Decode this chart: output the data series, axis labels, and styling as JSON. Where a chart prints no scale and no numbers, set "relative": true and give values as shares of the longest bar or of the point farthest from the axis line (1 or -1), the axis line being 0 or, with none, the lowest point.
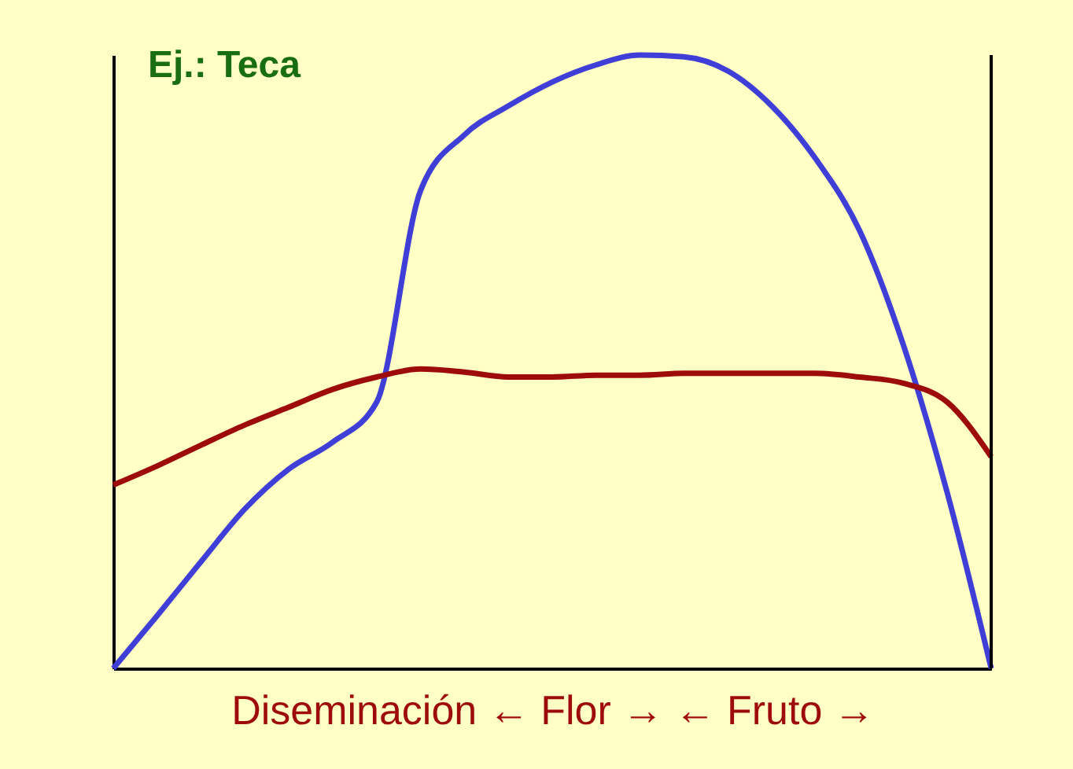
{
  "chart_data": {
    "type": "line",
    "relative": true,
    "xlabel": "Diseminación ← Flor → ← Fruto →",
    "annotations": [
      "Ej.: Teca"
    ],
    "categories": [
      null,
      null,
      null,
      null,
      null,
      null,
      null,
      null,
      null,
      null,
      null,
      null,
      null,
      null,
      null,
      null,
      null,
      null,
      null,
      null,
      null
    ],
    "series": [
      {
        "color": "#3f3fd8",
        "values": [
          0,
          0.086,
          0.174,
          0.26,
          0.325,
          0.369,
          0.434,
          0.779,
          0.87,
          0.917,
          0.956,
          0.984,
          1.0,
          0.997,
          0.974,
          0.917,
          0.831,
          0.714,
          0.527,
          0.286,
          0
        ]
      },
      {
        "color": "#9e0b0b",
        "values": [
          0.299,
          0.33,
          0.364,
          0.397,
          0.426,
          0.455,
          0.475,
          0.488,
          0.483,
          0.475,
          0.475,
          0.478,
          0.478,
          0.481,
          0.481,
          0.481,
          0.481,
          0.475,
          0.465,
          0.434,
          0.345
        ]
      }
    ]
  }
}
